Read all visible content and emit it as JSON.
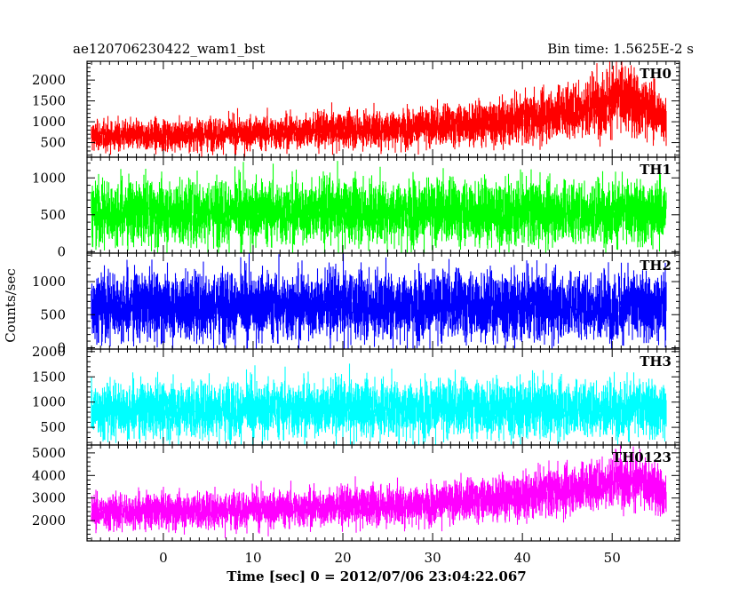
{
  "header": {
    "title": "ae120706230422_wam1_bst",
    "bin_time": "Bin time: 1.5625E-2 s"
  },
  "chart_data": {
    "type": "line",
    "xlabel": "Time [sec] 0 = 2012/07/06 23:04:22.067",
    "ylabel": "Counts/sec",
    "xlim": [
      -8.5,
      57.5
    ],
    "x_ticks": [
      0,
      10,
      20,
      30,
      40,
      50
    ],
    "x_start": -8.0,
    "x_end": 56.0,
    "bin_time": 0.015625,
    "grid": false,
    "panels": [
      {
        "name": "TH0",
        "color": "#ff0000",
        "ylim": [
          150,
          2450
        ],
        "yticks": [
          500,
          1000,
          1500,
          2000
        ],
        "trend": [
          [
            -8,
            650
          ],
          [
            0,
            680
          ],
          [
            10,
            730
          ],
          [
            20,
            800
          ],
          [
            30,
            880
          ],
          [
            40,
            1050
          ],
          [
            47,
            1350
          ],
          [
            51,
            1600
          ],
          [
            53,
            1450
          ],
          [
            56,
            1100
          ]
        ],
        "spread": 0.5
      },
      {
        "name": "TH1",
        "color": "#00ff00",
        "ylim": [
          -20,
          1280
        ],
        "yticks": [
          0,
          500,
          1000
        ],
        "trend": [
          [
            -8,
            540
          ],
          [
            20,
            540
          ],
          [
            40,
            540
          ],
          [
            56,
            540
          ]
        ],
        "spread": 0.75
      },
      {
        "name": "TH2",
        "color": "#0000ff",
        "ylim": [
          -20,
          1430
        ],
        "yticks": [
          0,
          500,
          1000
        ],
        "trend": [
          [
            -8,
            640
          ],
          [
            20,
            640
          ],
          [
            40,
            640
          ],
          [
            56,
            640
          ]
        ],
        "spread": 0.75
      },
      {
        "name": "TH3",
        "color": "#00ffff",
        "ylim": [
          150,
          2050
        ],
        "yticks": [
          500,
          1000,
          1500,
          2000
        ],
        "trend": [
          [
            -8,
            850
          ],
          [
            20,
            870
          ],
          [
            40,
            880
          ],
          [
            56,
            880
          ]
        ],
        "spread": 0.6
      },
      {
        "name": "TH0123",
        "color": "#ff00ff",
        "ylim": [
          1100,
          5350
        ],
        "yticks": [
          2000,
          3000,
          4000,
          5000
        ],
        "trend": [
          [
            -8,
            2400
          ],
          [
            10,
            2500
          ],
          [
            20,
            2600
          ],
          [
            30,
            2750
          ],
          [
            40,
            3100
          ],
          [
            47,
            3500
          ],
          [
            51,
            3900
          ],
          [
            53,
            3700
          ],
          [
            56,
            3300
          ]
        ],
        "spread": 0.3
      }
    ]
  }
}
